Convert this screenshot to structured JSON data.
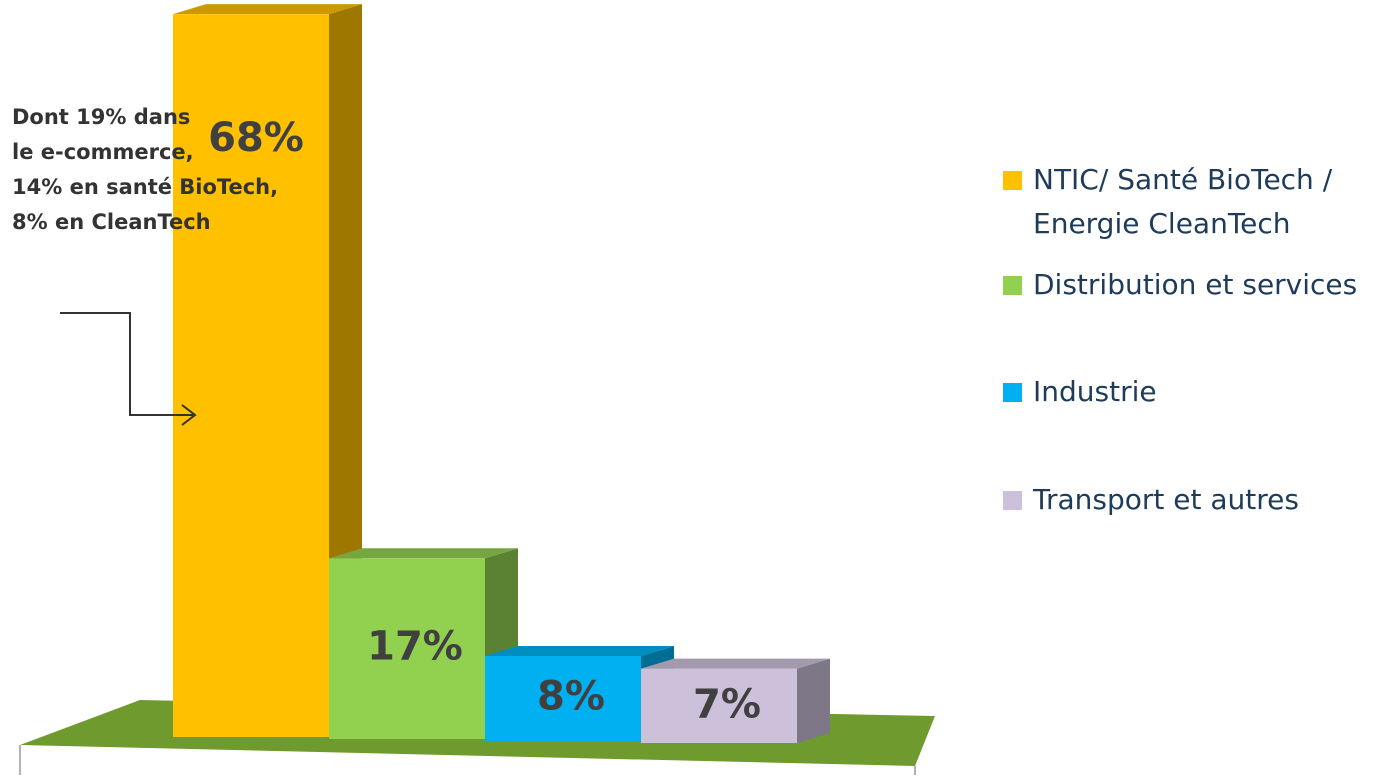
{
  "chart_data": {
    "type": "bar3d",
    "categories": [
      "NTIC/ Santé BioTech / Energie CleanTech",
      "Distribution et services",
      "Industrie",
      "Transport et autres"
    ],
    "values": [
      68,
      17,
      8,
      7
    ],
    "value_labels": [
      "68%",
      "17%",
      "8%",
      "7%"
    ],
    "colors": [
      "#FFC000",
      "#92D050",
      "#00B0F0",
      "#CCC0DA"
    ],
    "annotation": [
      "Dont 19% dans",
      "le e-commerce,",
      "14% en santé BioTech,",
      "8% en CleanTech"
    ],
    "legend": "right"
  }
}
